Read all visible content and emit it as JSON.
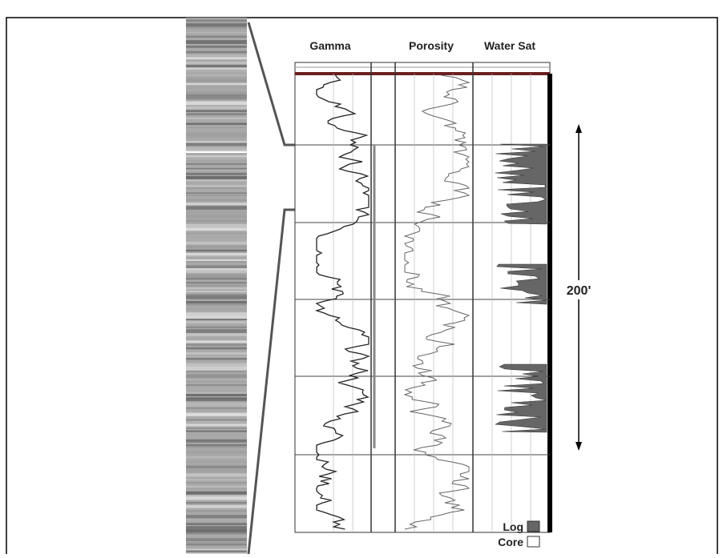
{
  "tracks": {
    "gamma": "Gamma",
    "porosity": "Porosity",
    "water_sat": "Water Sat"
  },
  "scale_label": "200'",
  "legend": {
    "log": "Log",
    "core": "Core"
  }
}
